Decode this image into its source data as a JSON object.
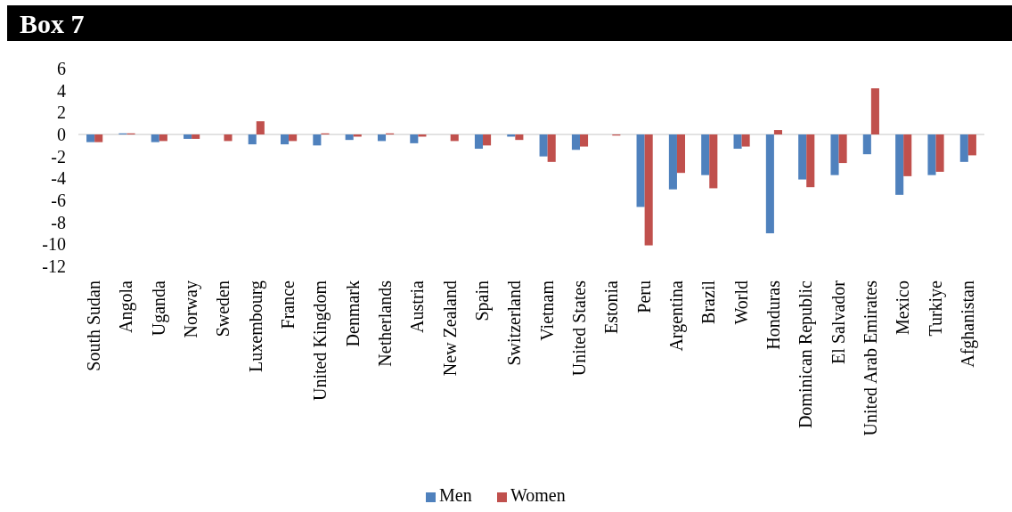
{
  "chart_data": {
    "type": "bar",
    "title": "Box 7",
    "categories": [
      "South Sudan",
      "Angola",
      "Uganda",
      "Norway",
      "Sweden",
      "Luxembourg",
      "France",
      "United Kingdom",
      "Denmark",
      "Netherlands",
      "Austria",
      "New Zealand",
      "Spain",
      "Switzerland",
      "Vietnam",
      "United States",
      "Estonia",
      "Peru",
      "Argentina",
      "Brazil",
      "World",
      "Honduras",
      "Dominican Republic",
      "El Salvador",
      "United Arab Emirates",
      "Mexico",
      "Turkiye",
      "Afghanistan"
    ],
    "series": [
      {
        "name": "Men",
        "color": "#4f81bd",
        "values": [
          -0.7,
          0.1,
          -0.7,
          -0.4,
          0,
          -0.9,
          -0.9,
          -1.0,
          -0.5,
          -0.6,
          -0.8,
          0,
          -1.3,
          -0.2,
          -2.0,
          -1.4,
          0,
          -6.6,
          -5.0,
          -3.7,
          -1.3,
          -9.0,
          -4.1,
          -3.7,
          -1.8,
          -5.5,
          -3.7,
          -2.5
        ]
      },
      {
        "name": "Women",
        "color": "#c0504d",
        "values": [
          -0.7,
          0.1,
          -0.6,
          -0.4,
          -0.6,
          1.2,
          -0.6,
          0.1,
          -0.2,
          0.1,
          -0.2,
          -0.6,
          -1.0,
          -0.5,
          -2.5,
          -1.1,
          -0.1,
          -10.1,
          -3.5,
          -4.9,
          -1.1,
          0.4,
          -4.8,
          -2.6,
          4.2,
          -3.8,
          -3.4,
          -1.9
        ]
      }
    ],
    "ylim": [
      -12,
      6
    ],
    "yticks": [
      -12,
      -10,
      -8,
      -6,
      -4,
      -2,
      0,
      2,
      4,
      6
    ],
    "legend": "bottom"
  }
}
